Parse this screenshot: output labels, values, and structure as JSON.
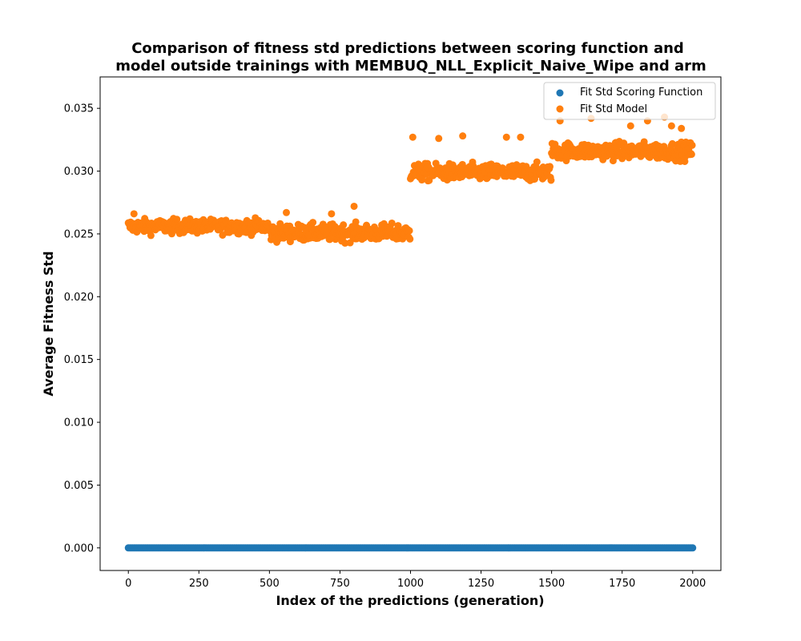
{
  "chart_data": {
    "type": "scatter",
    "title_lines": [
      "Comparison of fitness std predictions between scoring function and",
      "model outside trainings with MEMBUQ_NLL_Explicit_Naive_Wipe and arm"
    ],
    "xlabel": "Index of the predictions (generation)",
    "ylabel": "Average Fitness Std",
    "xlim": [
      -100,
      2100
    ],
    "ylim": [
      -0.0018,
      0.0375
    ],
    "xticks": [
      0,
      250,
      500,
      750,
      1000,
      1250,
      1500,
      1750,
      2000
    ],
    "xtick_labels": [
      "0",
      "250",
      "500",
      "750",
      "1000",
      "1250",
      "1500",
      "1750",
      "2000"
    ],
    "yticks": [
      0.0,
      0.005,
      0.01,
      0.015,
      0.02,
      0.025,
      0.03,
      0.035
    ],
    "ytick_labels": [
      "0.000",
      "0.005",
      "0.010",
      "0.015",
      "0.020",
      "0.025",
      "0.030",
      "0.035"
    ],
    "grid": false,
    "legend_position": "top-right",
    "series": [
      {
        "name": "Fit Std Scoring Function",
        "color": "#1f77b4",
        "x_range": [
          0,
          2000
        ],
        "constant_y": 0.0
      },
      {
        "name": "Fit Std Model",
        "color": "#ff7f0e",
        "segments": [
          {
            "x_range": [
              0,
              500
            ],
            "mean": 0.0256,
            "spread": 0.0005
          },
          {
            "x_range": [
              500,
              1000
            ],
            "mean": 0.0251,
            "spread": 0.0006
          },
          {
            "x_range": [
              1000,
              1500
            ],
            "mean": 0.0299,
            "spread": 0.0006
          },
          {
            "x_range": [
              1500,
              2000
            ],
            "mean": 0.0316,
            "spread": 0.0006
          }
        ],
        "outliers": [
          [
            1008,
            0.0327
          ],
          [
            1100,
            0.0326
          ],
          [
            1185,
            0.0328
          ],
          [
            1340,
            0.0327
          ],
          [
            1390,
            0.0327
          ],
          [
            800,
            0.0272
          ],
          [
            560,
            0.0267
          ],
          [
            720,
            0.0266
          ],
          [
            20,
            0.0266
          ],
          [
            1640,
            0.0342
          ],
          [
            1530,
            0.034
          ],
          [
            1900,
            0.0343
          ],
          [
            1840,
            0.034
          ],
          [
            1925,
            0.0336
          ],
          [
            1960,
            0.0334
          ],
          [
            1780,
            0.0336
          ]
        ]
      }
    ]
  }
}
